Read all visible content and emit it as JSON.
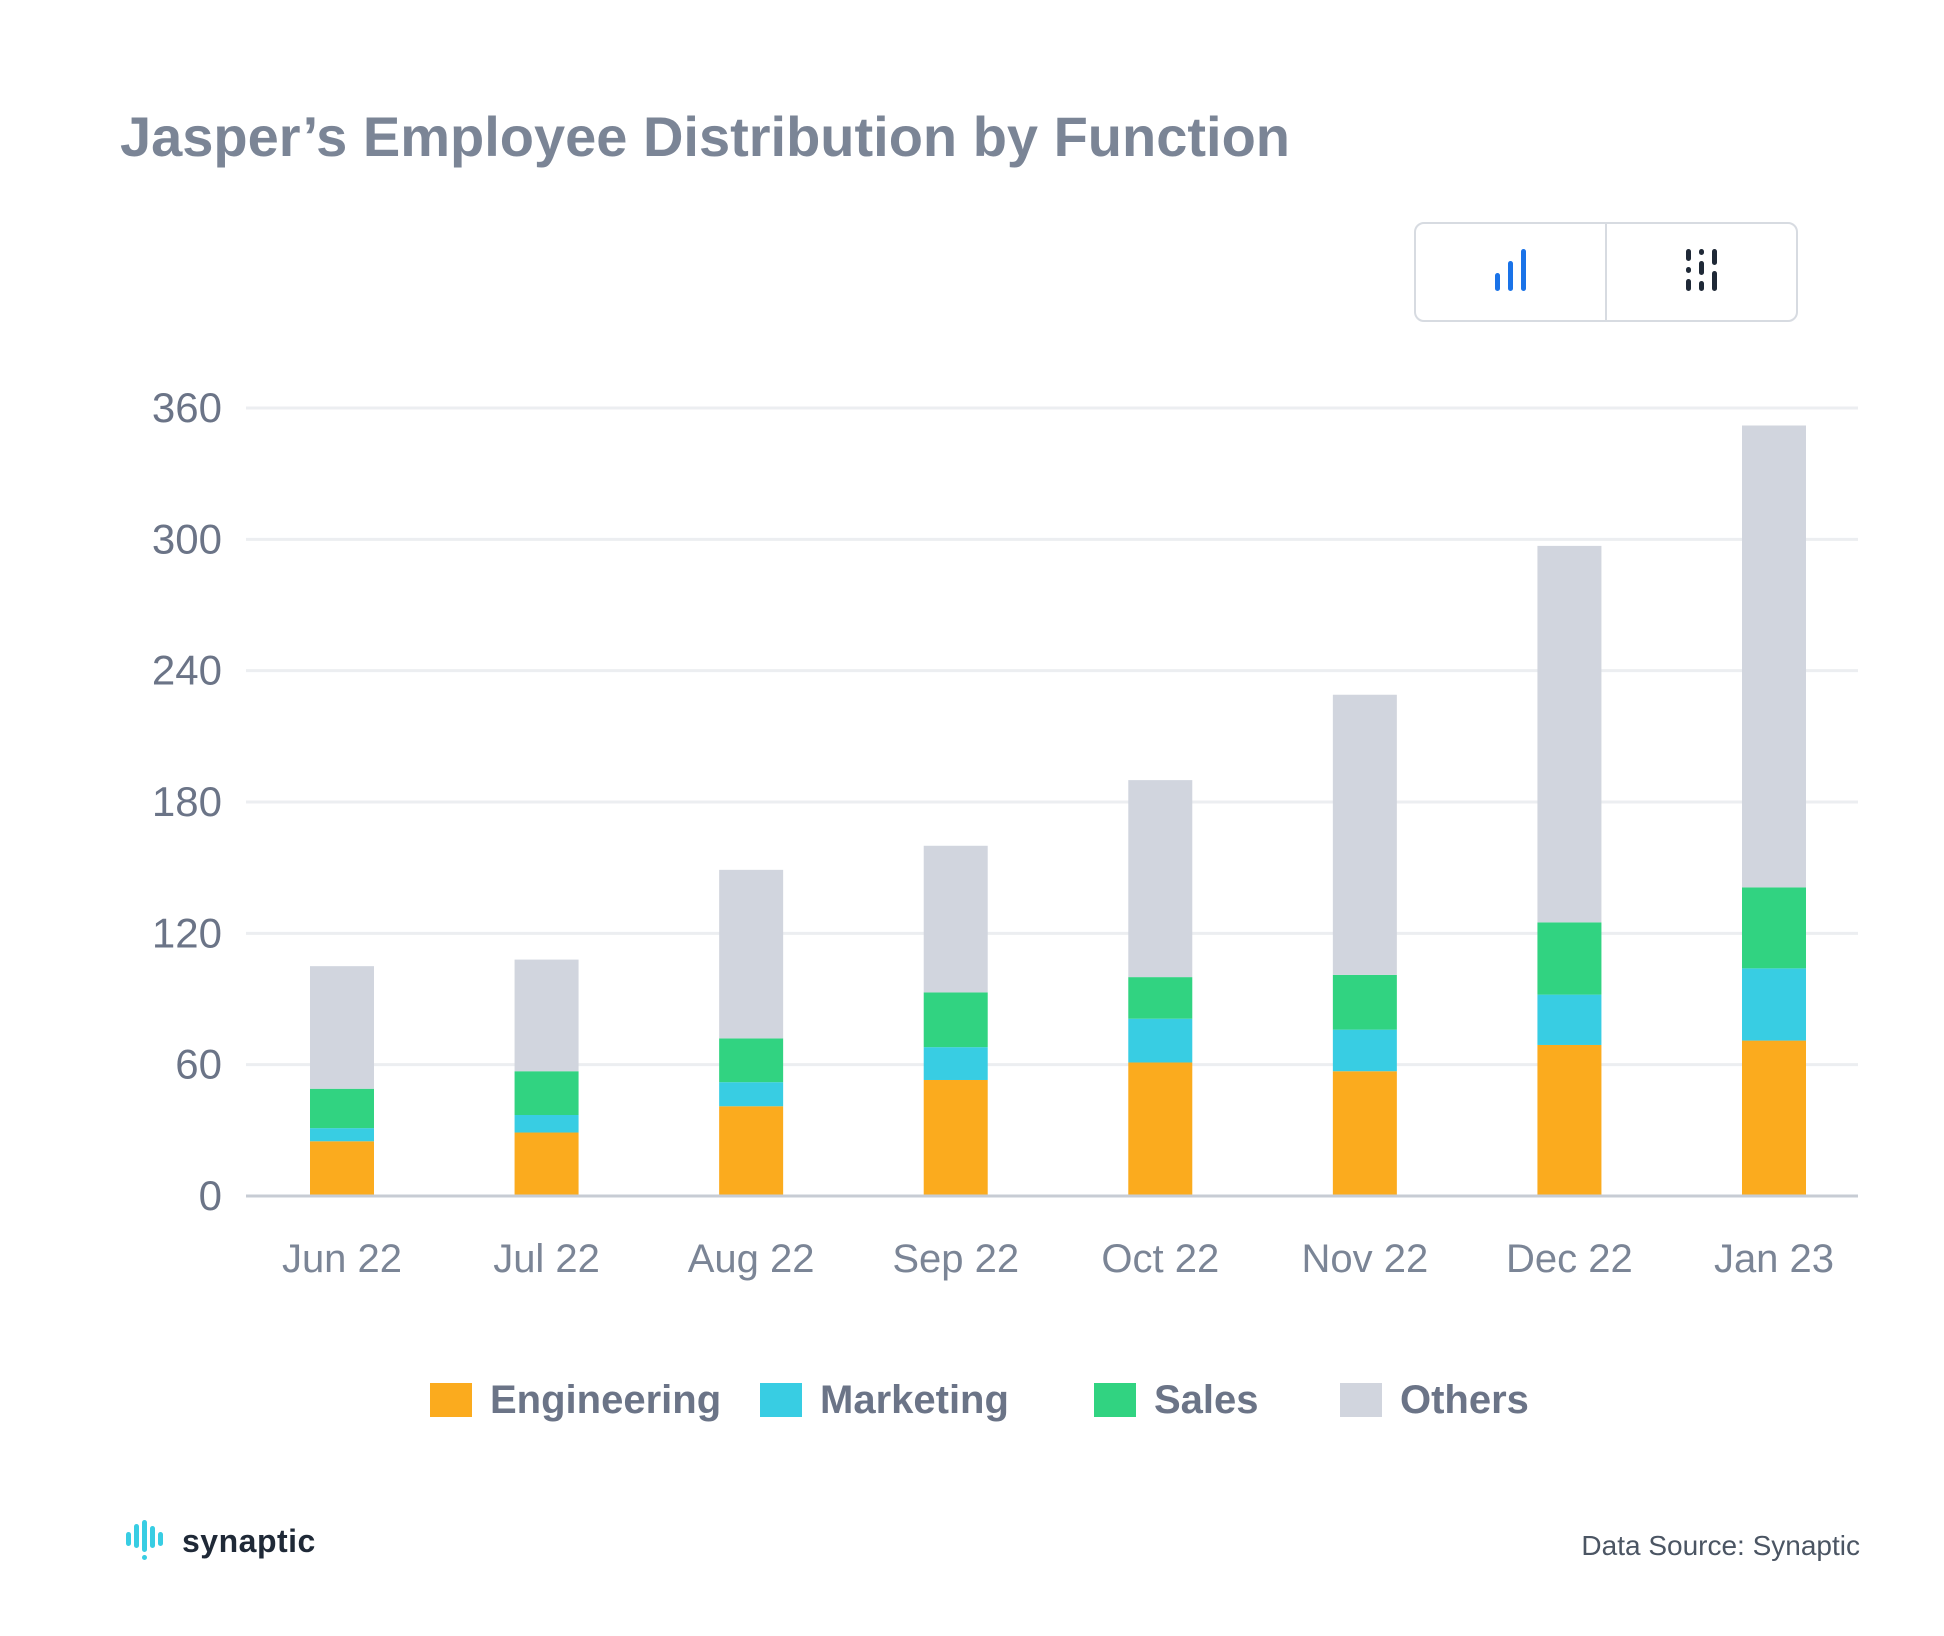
{
  "title": "Jasper’s Employee Distribution by Function",
  "toggle": {
    "bar_icon": "bar-chart-icon",
    "column_icon": "columns-icon"
  },
  "chart_data": {
    "type": "bar",
    "stacked": true,
    "categories": [
      "Jun 22",
      "Jul 22",
      "Aug 22",
      "Sep 22",
      "Oct 22",
      "Nov 22",
      "Dec 22",
      "Jan 23"
    ],
    "series": [
      {
        "name": "Engineering",
        "color": "#fbab1e",
        "values": [
          25,
          29,
          41,
          53,
          61,
          57,
          69,
          71
        ]
      },
      {
        "name": "Marketing",
        "color": "#38cde3",
        "values": [
          6,
          8,
          11,
          15,
          20,
          19,
          23,
          33
        ]
      },
      {
        "name": "Sales",
        "color": "#31d381",
        "values": [
          18,
          20,
          20,
          25,
          19,
          25,
          33,
          37
        ]
      },
      {
        "name": "Others",
        "color": "#d1d5de",
        "values": [
          56,
          51,
          77,
          67,
          90,
          128,
          172,
          211
        ]
      }
    ],
    "ylim": [
      0,
      360
    ],
    "yticks": [
      0,
      60,
      120,
      180,
      240,
      300,
      360
    ],
    "grid": true,
    "legend_position": "bottom"
  },
  "footer": {
    "brand": "synaptic",
    "source": "Data Source: Synaptic"
  }
}
